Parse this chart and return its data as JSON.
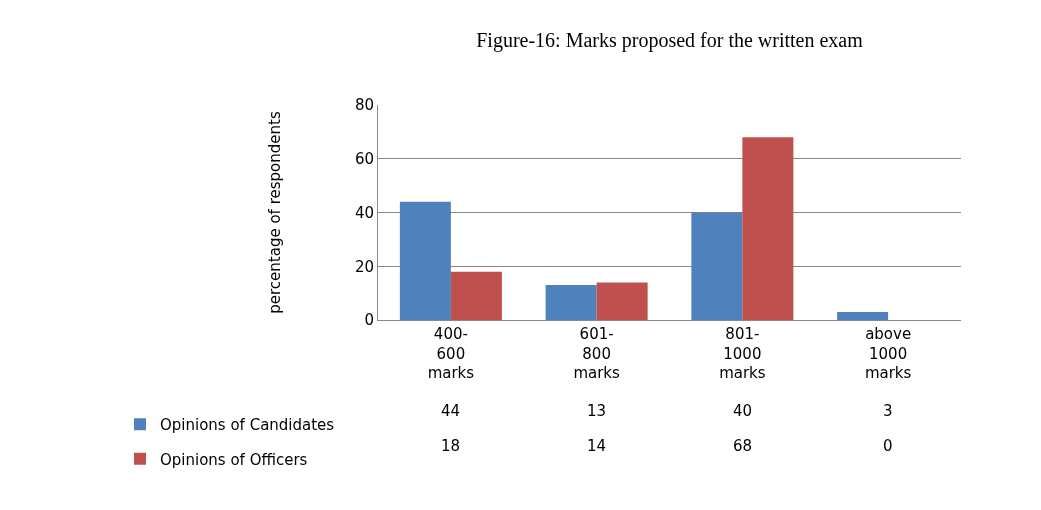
{
  "chart_data": {
    "type": "bar",
    "title": "Figure-16: Marks proposed for the written exam",
    "ylabel": "percentage of respondents",
    "categories": [
      "400-600 marks",
      "601-800 marks",
      "801-1000 marks",
      "above 1000 marks"
    ],
    "series": [
      {
        "name": "Opinions of Candidates",
        "color": "#4f81bd",
        "values": [
          44,
          13,
          40,
          3
        ]
      },
      {
        "name": "Opinions of Officers",
        "color": "#c0504d",
        "values": [
          18,
          14,
          68,
          0
        ]
      }
    ],
    "ylim": [
      0,
      80
    ],
    "yticks": [
      0,
      20,
      40,
      60,
      80
    ],
    "grid": "y",
    "data_labels": true,
    "legend": "bottom left"
  }
}
